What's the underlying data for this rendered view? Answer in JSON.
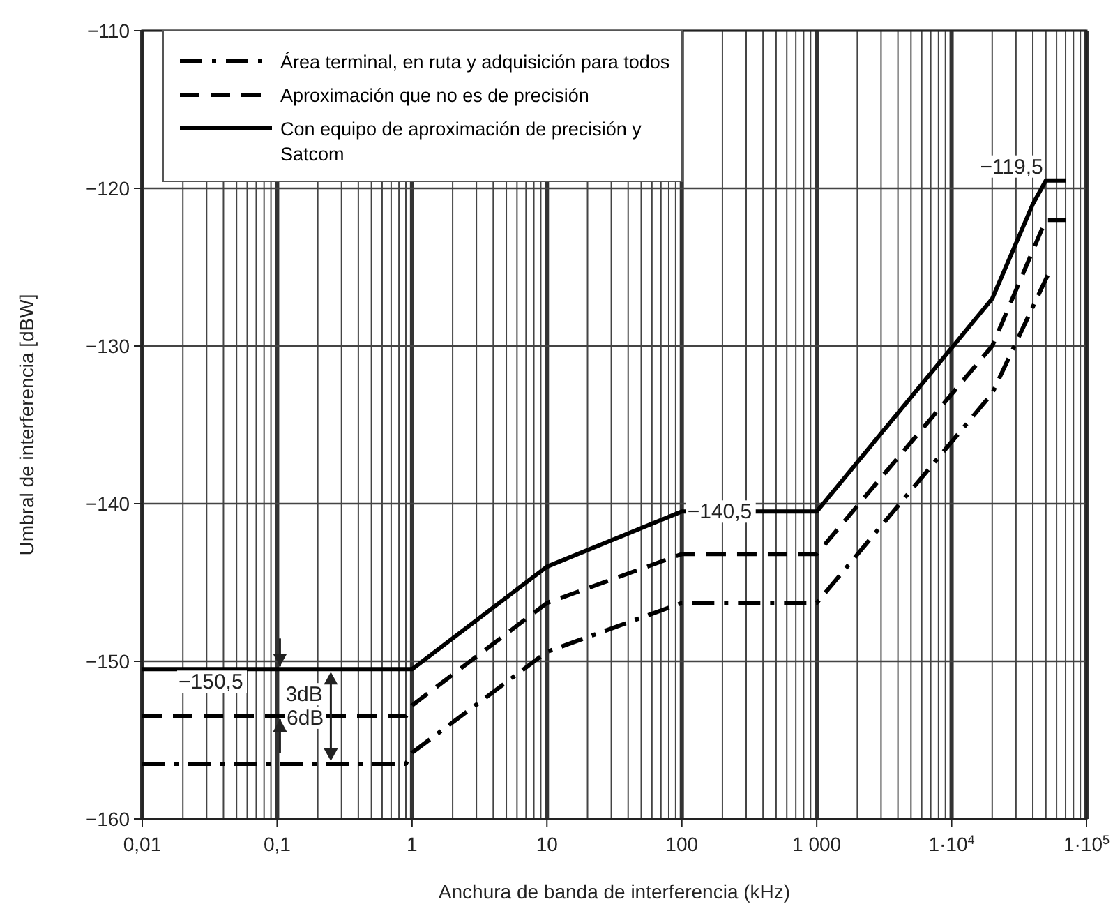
{
  "chart_data": {
    "type": "line",
    "xlabel": "Anchura de banda de interferencia (kHz)",
    "ylabel": "Umbral de interferencia [dBW]",
    "log": "x",
    "grid": true,
    "legend": "top left",
    "marker": "none",
    "xlim": [
      0.01,
      100000
    ],
    "ylim": [
      -160,
      -110
    ],
    "xticks": [
      {
        "value": 0.01,
        "label": "0,01"
      },
      {
        "value": 0.1,
        "label": "0,1"
      },
      1,
      10,
      100,
      {
        "value": 1000,
        "label": "1 000"
      },
      {
        "value": 10000,
        "label": "1·10$^{4}$"
      },
      {
        "value": 100000,
        "label": "1·10$^{5}$"
      }
    ],
    "yticks": [
      {
        "value": -160,
        "label": "−160"
      },
      {
        "value": -150,
        "label": "−150"
      },
      {
        "value": -140,
        "label": "−140"
      },
      {
        "value": -130,
        "label": "−130"
      },
      {
        "value": -120,
        "label": "−120"
      },
      {
        "value": -110,
        "label": "−110"
      }
    ],
    "series": [
      {
        "name": "Área terminal, en ruta y adquisición para todos",
        "color": "#000000",
        "line_style": "dashdot",
        "x": [
          0.01,
          0.9,
          1,
          10,
          100,
          1000,
          20000,
          55000
        ],
        "values": [
          -156.5,
          -156.5,
          -155.8,
          -149.4,
          -146.3,
          -146.3,
          -133,
          -125
        ]
      },
      {
        "name": "Aproximación que no es de precisión",
        "color": "#000000",
        "line_style": "dashed",
        "x": [
          0.01,
          0.9,
          1,
          10,
          100,
          1000,
          20000,
          50000,
          70000
        ],
        "values": [
          -153.5,
          -153.5,
          -152.8,
          -146.3,
          -143.2,
          -143.2,
          -130,
          -122,
          -122
        ]
      },
      {
        "name": "Con equipo de aproximación de precisión y Satcom",
        "color": "#000000",
        "line_style": "solid",
        "x": [
          0.01,
          1,
          10,
          100,
          1000,
          20000,
          40000,
          50000,
          70000
        ],
        "values": [
          -150.5,
          -150.5,
          -144,
          -140.5,
          -140.5,
          -127,
          -121,
          -119.5,
          -119.5
        ]
      }
    ],
    "annotations": [
      {
        "text": "−150,5",
        "x": 0.01,
        "y": -150.5
      },
      {
        "text": "3dB",
        "x": 0.1,
        "y": -153.5
      },
      {
        "text": "6dB",
        "x": 0.25,
        "y": -156.5
      },
      {
        "text": "−140,5",
        "x": 100,
        "y": -140.5
      },
      {
        "text": "−119,5",
        "x": 50000,
        "y": -119.5
      }
    ]
  }
}
